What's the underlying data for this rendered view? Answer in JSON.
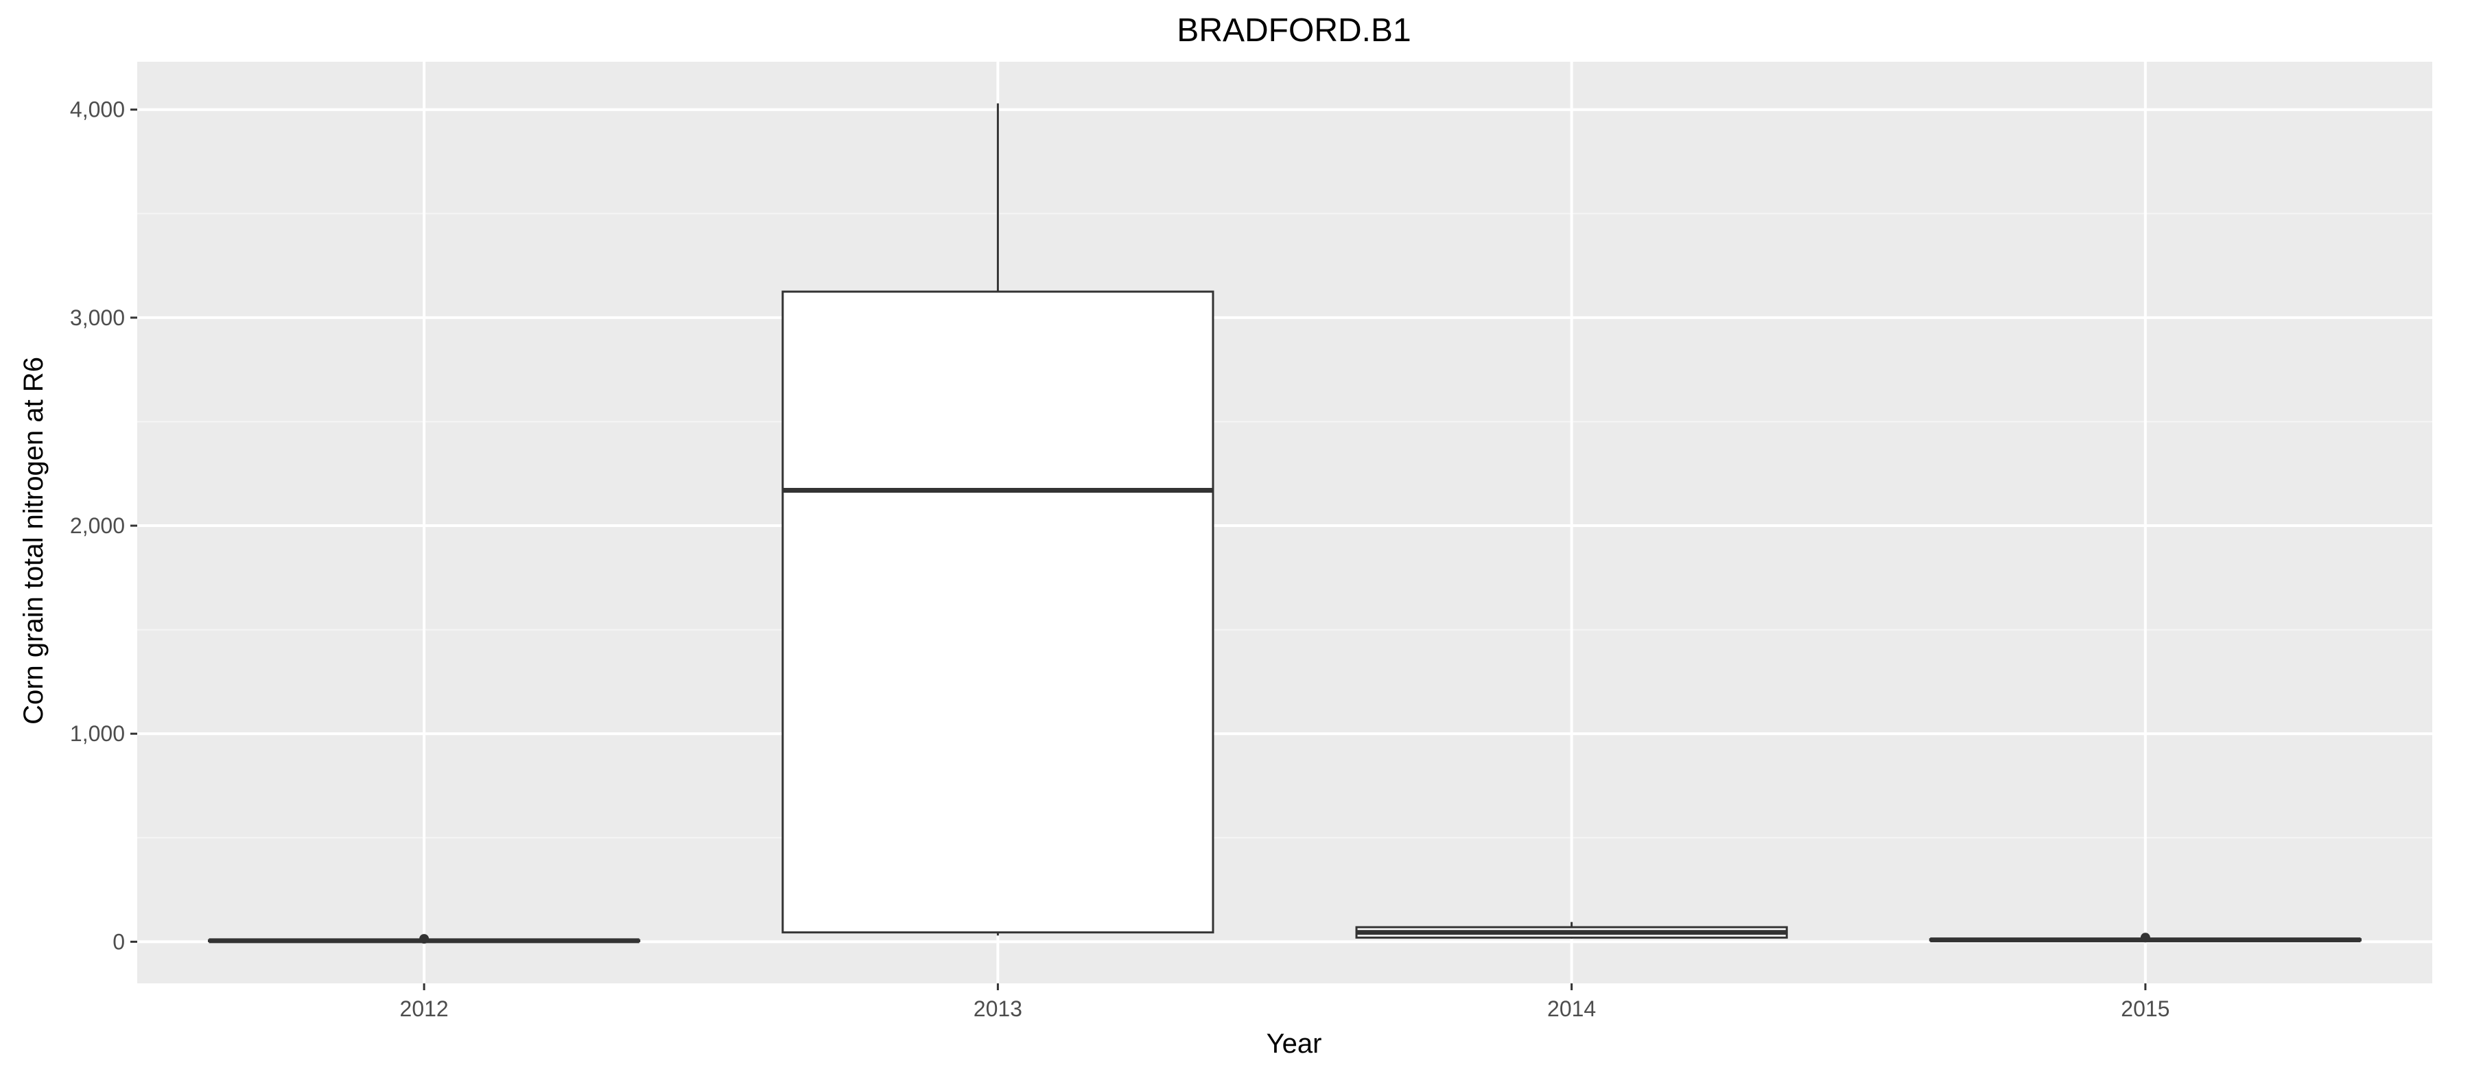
{
  "chart_data": {
    "type": "boxplot",
    "title": "BRADFORD.B1",
    "xlabel": "Year",
    "ylabel": "Corn grain total nitrogen at R6",
    "categories": [
      "2012",
      "2013",
      "2014",
      "2015"
    ],
    "boxes": [
      {
        "category": "2012",
        "whisker_low": 2,
        "q1": 3,
        "median": 5,
        "q3": 7,
        "whisker_high": 9,
        "outliers": [
          14
        ]
      },
      {
        "category": "2013",
        "whisker_low": 30,
        "q1": 45,
        "median": 2170,
        "q3": 3125,
        "whisker_high": 4030,
        "outliers": []
      },
      {
        "category": "2014",
        "whisker_low": 15,
        "q1": 20,
        "median": 45,
        "q3": 70,
        "whisker_high": 95,
        "outliers": []
      },
      {
        "category": "2015",
        "whisker_low": 5,
        "q1": 7,
        "median": 9,
        "q3": 12,
        "whisker_high": 15,
        "outliers": [
          20
        ]
      }
    ],
    "yticks": [
      0,
      1000,
      2000,
      3000,
      4000
    ],
    "ytick_labels": [
      "0",
      "1,000",
      "2,000",
      "3,000",
      "4,000"
    ],
    "ylim": [
      -200,
      4230
    ],
    "grid": true,
    "colors": {
      "panel_background": "#ebebeb",
      "grid_major": "#ffffff",
      "grid_minor": "#f5f5f5",
      "box_fill": "#ffffff",
      "box_stroke": "#333333",
      "tick_label": "#4d4d4d",
      "tick_mark": "#333333"
    }
  }
}
